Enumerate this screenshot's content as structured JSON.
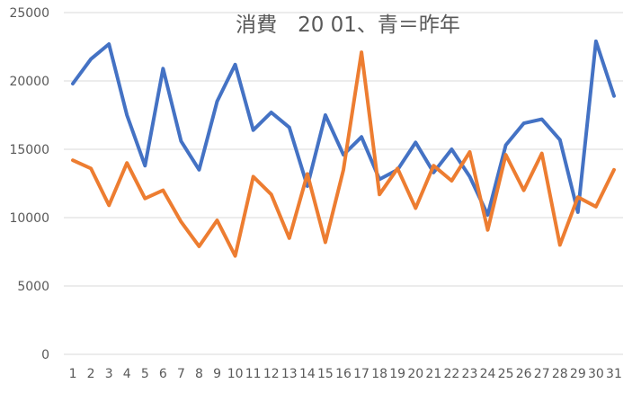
{
  "chart_data": {
    "type": "line",
    "title": "消費　20 01、青＝昨年",
    "categories": [
      "1",
      "2",
      "3",
      "4",
      "5",
      "6",
      "7",
      "8",
      "9",
      "10",
      "11",
      "12",
      "13",
      "14",
      "15",
      "16",
      "17",
      "18",
      "19",
      "20",
      "21",
      "22",
      "23",
      "24",
      "25",
      "26",
      "27",
      "28",
      "29",
      "30",
      "31"
    ],
    "y_ticks": [
      "0",
      "5000",
      "10000",
      "15000",
      "20000",
      "25000"
    ],
    "ylim": [
      0,
      25000
    ],
    "grid": true,
    "legend": "none",
    "series": [
      {
        "color": "#4472C4",
        "values": [
          19800,
          21600,
          22700,
          17500,
          13800,
          20900,
          15600,
          13500,
          18500,
          21200,
          16400,
          17700,
          16600,
          12300,
          17500,
          14600,
          15900,
          12800,
          13500,
          15500,
          13300,
          15000,
          13000,
          10200,
          15300,
          16900,
          17200,
          15700,
          10400,
          22900,
          18900
        ]
      },
      {
        "color": "#ED7D31",
        "values": [
          14200,
          13600,
          10900,
          14000,
          11400,
          12000,
          9700,
          7900,
          9800,
          7200,
          13000,
          11700,
          8500,
          13200,
          8200,
          13500,
          22100,
          11700,
          13600,
          10700,
          13800,
          12700,
          14800,
          9100,
          14600,
          12000,
          14700,
          8000,
          11500,
          10800,
          13500
        ]
      }
    ]
  }
}
